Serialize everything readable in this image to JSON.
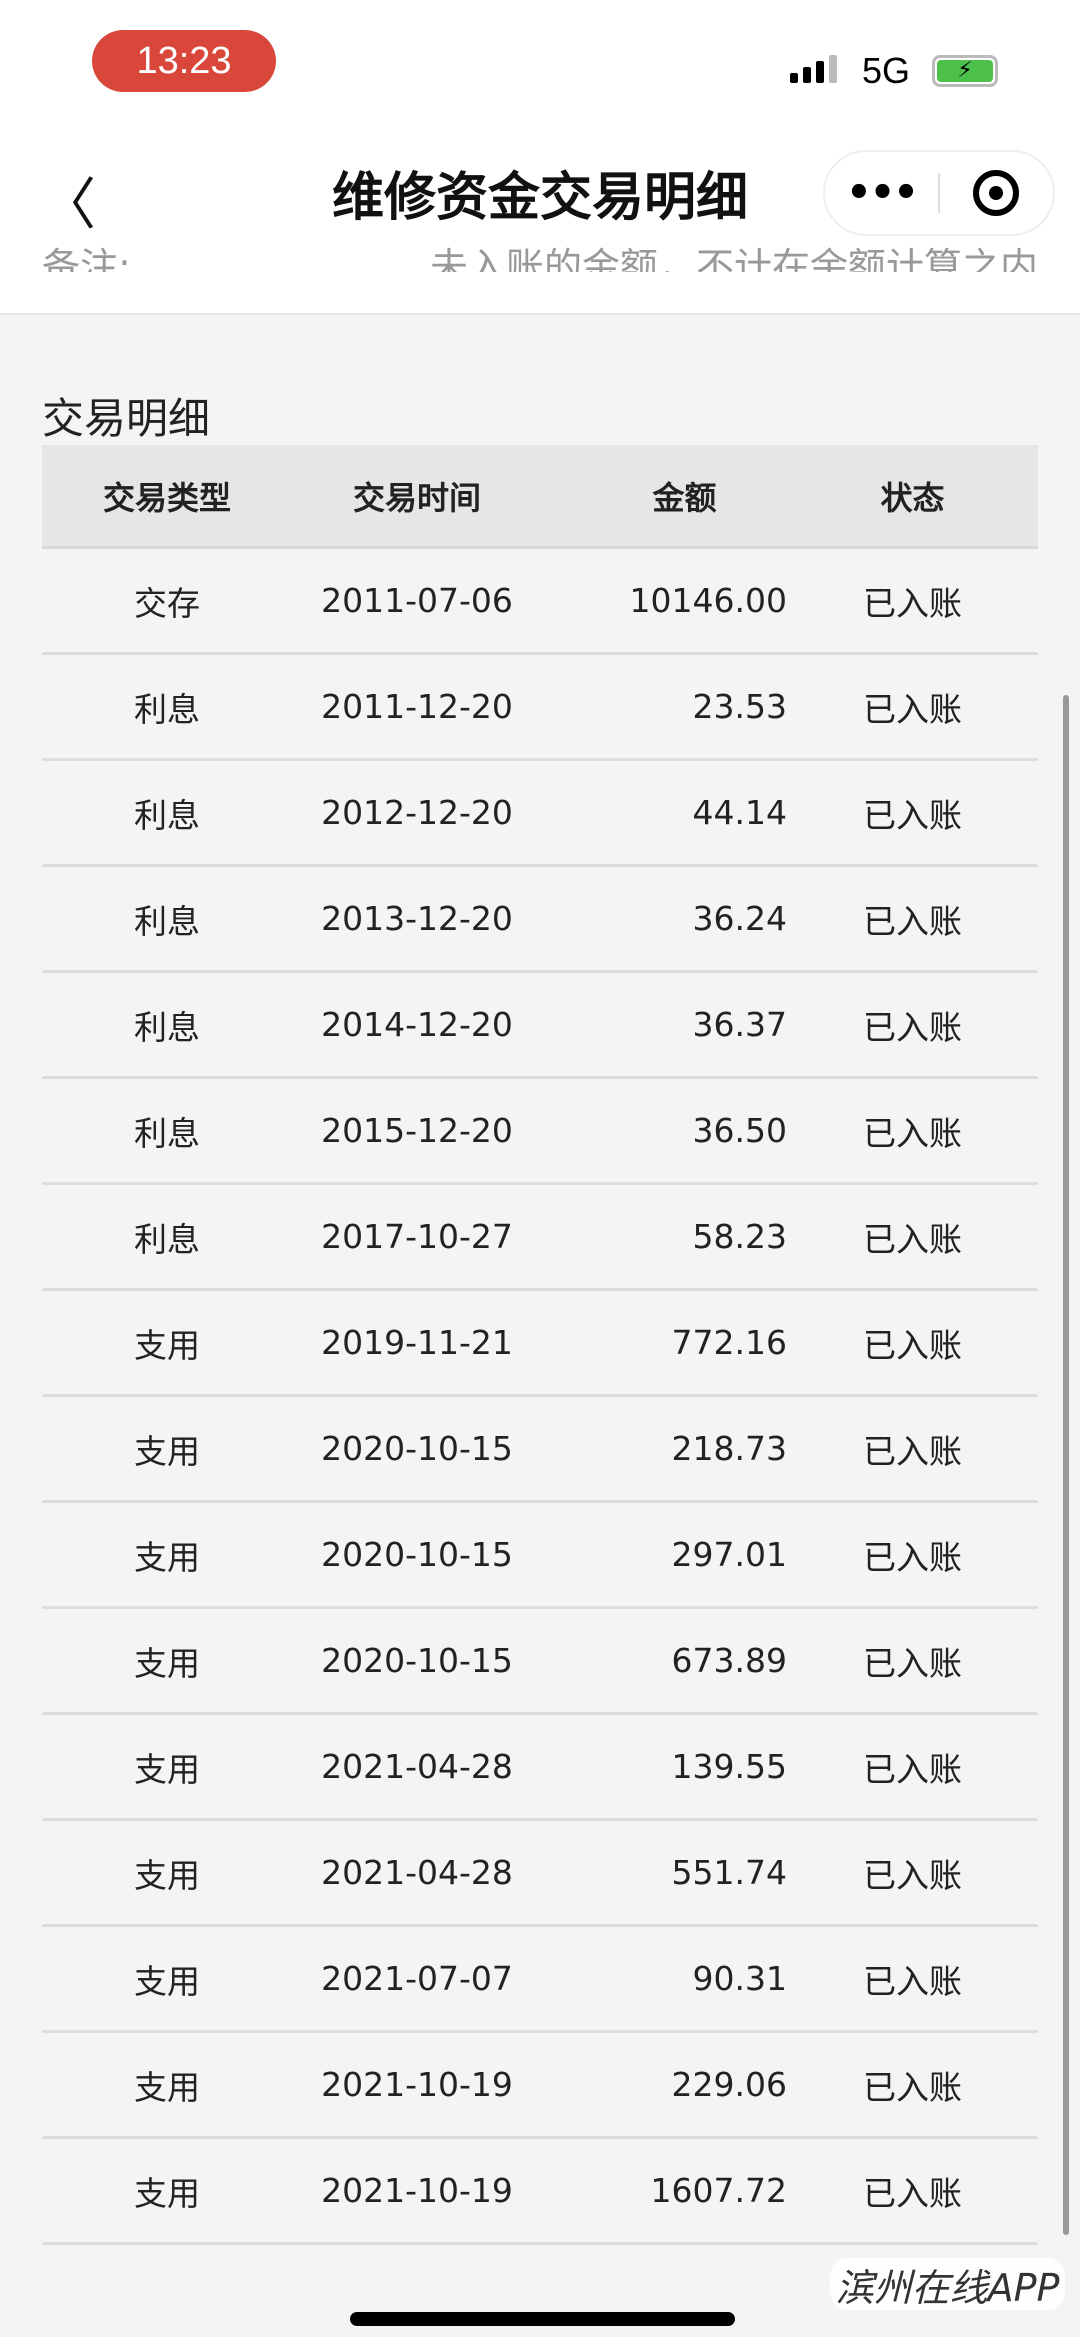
{
  "status_bar": {
    "time": "13:23",
    "network": "5G",
    "battery_icon": "battery-charging-icon"
  },
  "nav": {
    "title": "维修资金交易明细",
    "back_icon": "chevron-left-icon",
    "more_icon": "more-dots-icon",
    "record_icon": "target-circle-icon"
  },
  "note": {
    "label": "备注:",
    "text": "未入账的金额，不计在余额计算之内"
  },
  "section_title": "交易明细",
  "table": {
    "headers": [
      "交易类型",
      "交易时间",
      "金额",
      "状态"
    ],
    "rows": [
      [
        "交存",
        "2011-07-06",
        "10146.00",
        "已入账"
      ],
      [
        "利息",
        "2011-12-20",
        "23.53",
        "已入账"
      ],
      [
        "利息",
        "2012-12-20",
        "44.14",
        "已入账"
      ],
      [
        "利息",
        "2013-12-20",
        "36.24",
        "已入账"
      ],
      [
        "利息",
        "2014-12-20",
        "36.37",
        "已入账"
      ],
      [
        "利息",
        "2015-12-20",
        "36.50",
        "已入账"
      ],
      [
        "利息",
        "2017-10-27",
        "58.23",
        "已入账"
      ],
      [
        "支用",
        "2019-11-21",
        "772.16",
        "已入账"
      ],
      [
        "支用",
        "2020-10-15",
        "218.73",
        "已入账"
      ],
      [
        "支用",
        "2020-10-15",
        "297.01",
        "已入账"
      ],
      [
        "支用",
        "2020-10-15",
        "673.89",
        "已入账"
      ],
      [
        "支用",
        "2021-04-28",
        "139.55",
        "已入账"
      ],
      [
        "支用",
        "2021-04-28",
        "551.74",
        "已入账"
      ],
      [
        "支用",
        "2021-07-07",
        "90.31",
        "已入账"
      ],
      [
        "支用",
        "2021-10-19",
        "229.06",
        "已入账"
      ],
      [
        "支用",
        "2021-10-19",
        "1607.72",
        "已入账"
      ]
    ]
  },
  "watermark": "滨州在线APP"
}
